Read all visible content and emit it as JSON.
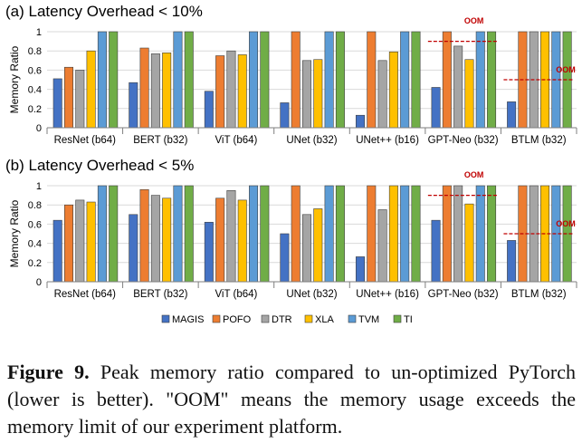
{
  "colors": {
    "MAGIS": "#4472C4",
    "POFO": "#ED7D31",
    "DTR": "#A5A5A5",
    "XLA": "#FFC000",
    "TVM": "#5B9BD5",
    "TI": "#70AD47",
    "oom_line": "#C00000",
    "grid": "#D9D9D9",
    "axis": "#7F7F7F"
  },
  "legend": {
    "position": "bottom",
    "items": [
      "MAGIS",
      "POFO",
      "DTR",
      "XLA",
      "TVM",
      "TI"
    ]
  },
  "caption": {
    "label": "Figure 9.",
    "text": "Peak memory ratio compared to un-optimized PyTorch (lower is better). \"OOM\" means the memory usage exceeds the memory limit of our experiment platform."
  },
  "chart_data": [
    {
      "type": "bar",
      "title": "(a) Latency Overhead < 10%",
      "ylabel": "Memory Ratio",
      "ylim": [
        0,
        1
      ],
      "yticks": [
        "0",
        "0.2",
        "0.4",
        "0.6",
        "0.8",
        "1"
      ],
      "grid": true,
      "categories": [
        "ResNet (b64)",
        "BERT (b32)",
        "ViT (b64)",
        "UNet (b32)",
        "UNet++ (b16)",
        "GPT-Neo (b32)",
        "BTLM (b32)"
      ],
      "series": [
        {
          "name": "MAGIS",
          "values": [
            0.51,
            0.47,
            0.38,
            0.26,
            0.13,
            0.42,
            0.27
          ]
        },
        {
          "name": "POFO",
          "values": [
            0.63,
            0.83,
            0.75,
            1.0,
            1.0,
            1.0,
            1.0
          ]
        },
        {
          "name": "DTR",
          "values": [
            0.6,
            0.77,
            0.8,
            0.7,
            0.7,
            0.85,
            1.0
          ]
        },
        {
          "name": "XLA",
          "values": [
            0.8,
            0.78,
            0.76,
            0.71,
            0.79,
            0.71,
            1.0
          ]
        },
        {
          "name": "TVM",
          "values": [
            1.0,
            1.0,
            1.0,
            1.0,
            1.0,
            1.0,
            1.0
          ]
        },
        {
          "name": "TI",
          "values": [
            1.0,
            1.0,
            1.0,
            1.0,
            1.0,
            1.0,
            1.0
          ]
        }
      ],
      "oom_markers": [
        {
          "category": "GPT-Neo (b32)",
          "value": 0.9,
          "label": "OOM"
        },
        {
          "category": "BTLM (b32)",
          "value": 0.5,
          "label": "OOM"
        }
      ]
    },
    {
      "type": "bar",
      "title": "(b) Latency Overhead < 5%",
      "ylabel": "Memory Ratio",
      "ylim": [
        0,
        1
      ],
      "yticks": [
        "0",
        "0.2",
        "0.4",
        "0.6",
        "0.8",
        "1"
      ],
      "grid": true,
      "categories": [
        "ResNet (b64)",
        "BERT (b32)",
        "ViT (b64)",
        "UNet (b32)",
        "UNet++ (b16)",
        "GPT-Neo (b32)",
        "BTLM (b32)"
      ],
      "series": [
        {
          "name": "MAGIS",
          "values": [
            0.64,
            0.7,
            0.62,
            0.5,
            0.26,
            0.64,
            0.43
          ]
        },
        {
          "name": "POFO",
          "values": [
            0.8,
            0.96,
            0.87,
            1.0,
            1.0,
            1.0,
            1.0
          ]
        },
        {
          "name": "DTR",
          "values": [
            0.85,
            0.9,
            0.95,
            0.7,
            0.75,
            1.0,
            1.0
          ]
        },
        {
          "name": "XLA",
          "values": [
            0.83,
            0.87,
            0.85,
            0.76,
            1.0,
            0.81,
            1.0
          ]
        },
        {
          "name": "TVM",
          "values": [
            1.0,
            1.0,
            1.0,
            1.0,
            1.0,
            1.0,
            1.0
          ]
        },
        {
          "name": "TI",
          "values": [
            1.0,
            1.0,
            1.0,
            1.0,
            1.0,
            1.0,
            1.0
          ]
        }
      ],
      "oom_markers": [
        {
          "category": "GPT-Neo (b32)",
          "value": 0.9,
          "label": "OOM"
        },
        {
          "category": "BTLM (b32)",
          "value": 0.5,
          "label": "OOM"
        }
      ]
    }
  ]
}
